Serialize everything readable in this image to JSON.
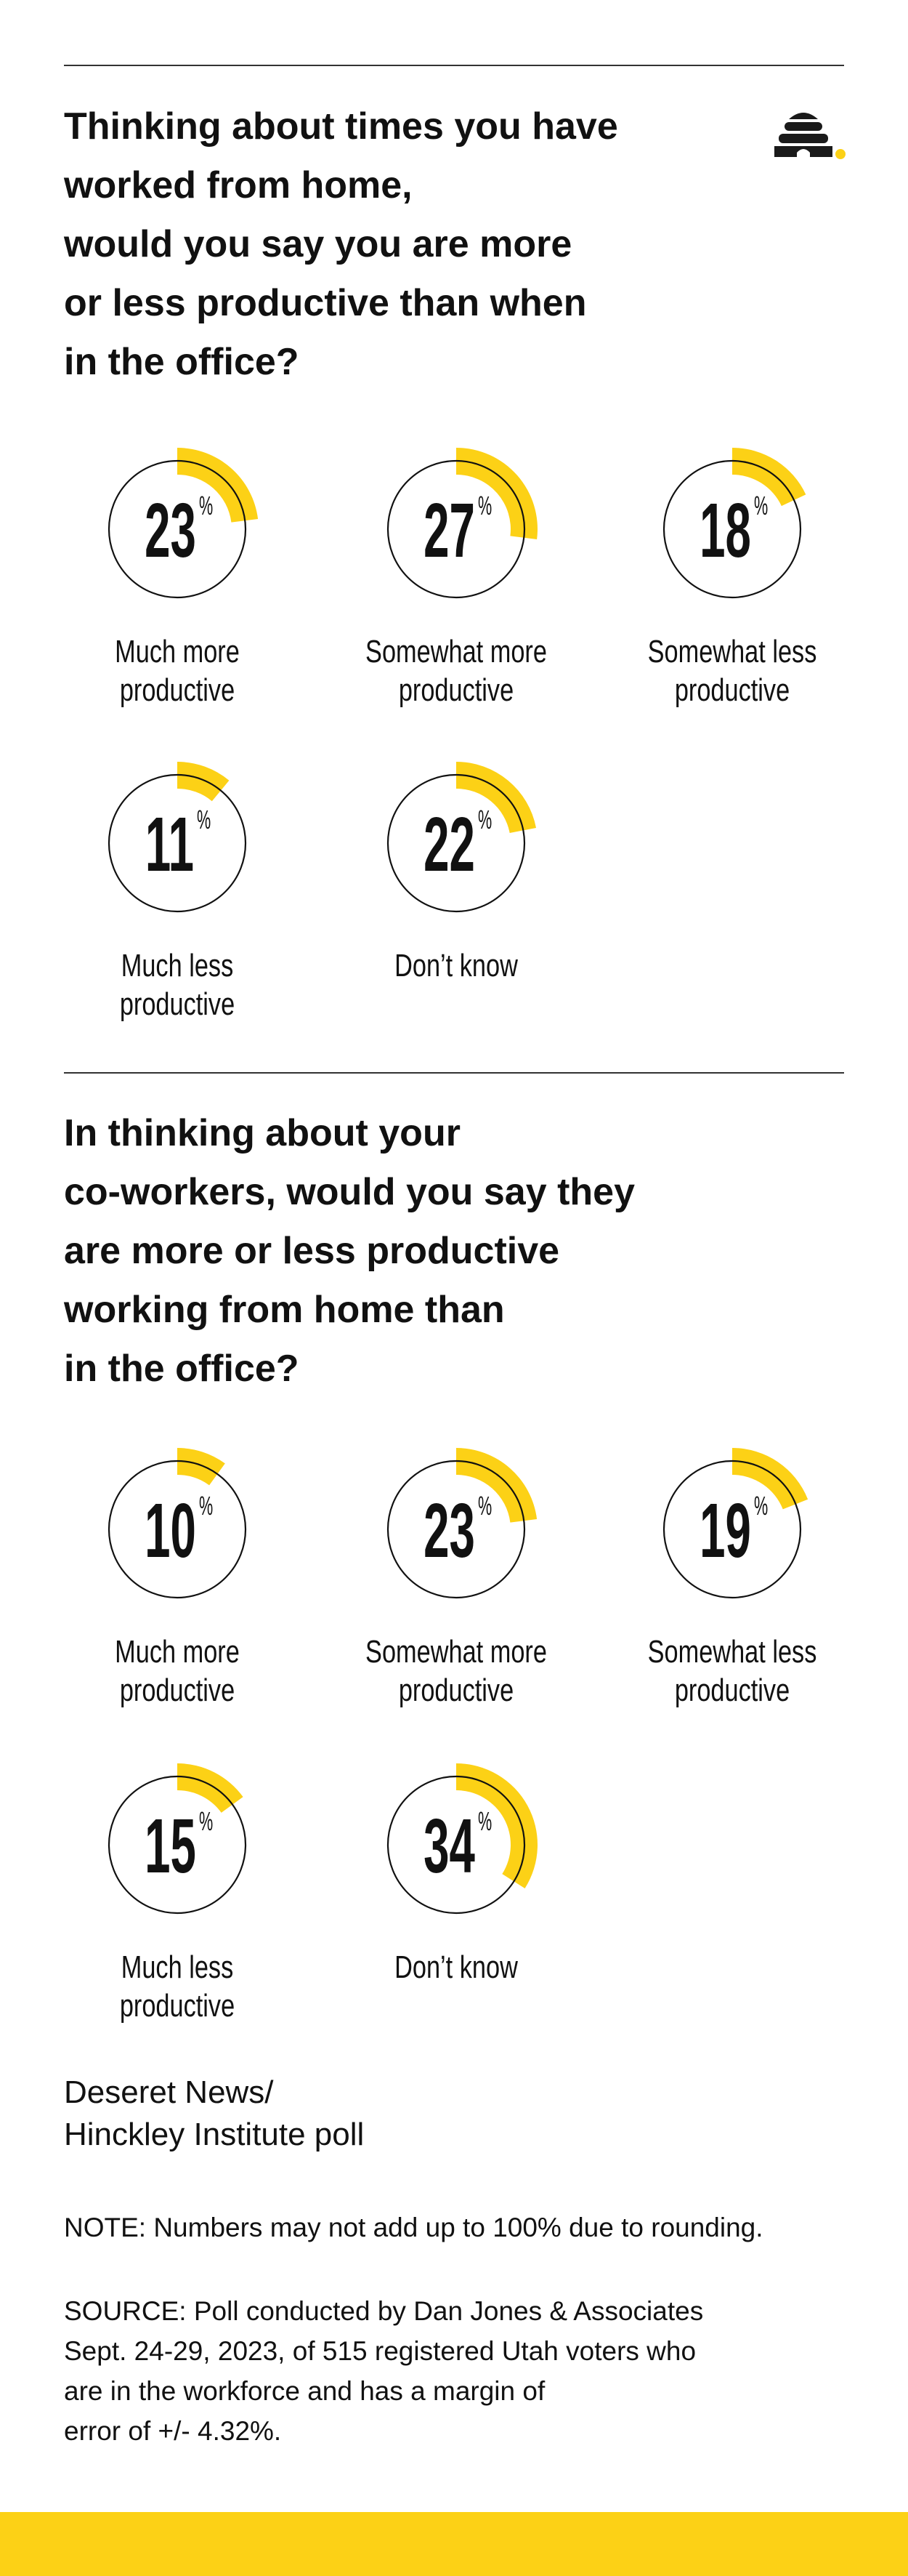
{
  "colors": {
    "accent": "#FCD116",
    "text": "#111111",
    "rule": "#333333"
  },
  "logo": {
    "icon": "beehive-icon"
  },
  "chart_data": [
    {
      "type": "radial-progress",
      "title_lines": [
        "Thinking about times you have",
        "worked from home,",
        "would you say you are more",
        "or less productive than when",
        "in the office?"
      ],
      "unit": "%",
      "items": [
        {
          "label_lines": [
            "Much more",
            "productive"
          ],
          "value": 23
        },
        {
          "label_lines": [
            "Somewhat more",
            "productive"
          ],
          "value": 27
        },
        {
          "label_lines": [
            "Somewhat less",
            "productive"
          ],
          "value": 18
        },
        {
          "label_lines": [
            "Much less",
            "productive"
          ],
          "value": 11
        },
        {
          "label_lines": [
            "Don’t know"
          ],
          "value": 22
        }
      ]
    },
    {
      "type": "radial-progress",
      "title_lines": [
        "In thinking about your",
        "co-workers, would you say they",
        "are more or less productive",
        "working from home than",
        "in the office?"
      ],
      "unit": "%",
      "items": [
        {
          "label_lines": [
            "Much more",
            "productive"
          ],
          "value": 10
        },
        {
          "label_lines": [
            "Somewhat more",
            "productive"
          ],
          "value": 23
        },
        {
          "label_lines": [
            "Somewhat less",
            "productive"
          ],
          "value": 19
        },
        {
          "label_lines": [
            "Much less",
            "productive"
          ],
          "value": 15
        },
        {
          "label_lines": [
            "Don’t know"
          ],
          "value": 34
        }
      ]
    }
  ],
  "footer": {
    "credit_lines": [
      "Deseret News/",
      "Hinckley Institute poll"
    ],
    "note": "NOTE: Numbers may not add up to 100% due to rounding.",
    "source_lines": [
      "SOURCE: Poll conducted by Dan Jones & Associates",
      "Sept. 24-29, 2023, of 515 registered Utah voters who",
      "are in the workforce and has a margin of",
      "error of +/- 4.32%."
    ]
  }
}
